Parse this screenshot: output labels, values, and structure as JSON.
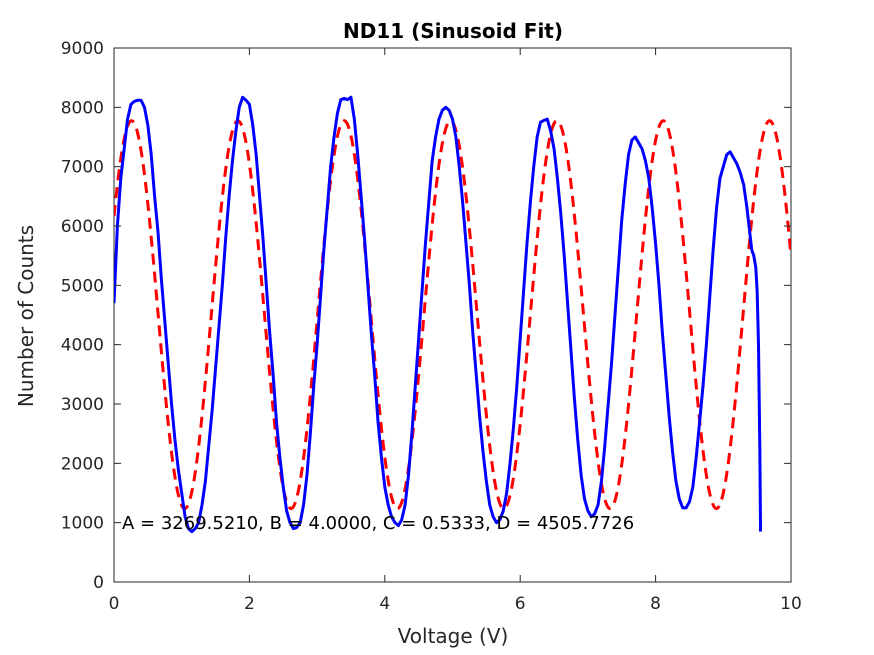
{
  "chart_data": {
    "type": "line",
    "title": "ND11 (Sinusoid Fit)",
    "xlabel": "Voltage (V)",
    "ylabel": "Number of Counts",
    "xlim": [
      0,
      10
    ],
    "ylim": [
      0,
      9000
    ],
    "xticks": [
      0,
      2,
      4,
      6,
      8,
      10
    ],
    "yticks": [
      0,
      1000,
      2000,
      3000,
      4000,
      5000,
      6000,
      7000,
      8000,
      9000
    ],
    "grid": false,
    "annotation": "A = 3269.5210, B = 4.0000, C = 0.5333, D = 4505.7726",
    "series": [
      {
        "style": "solid",
        "color": "#0000ff",
        "points": [
          [
            0.0,
            4700
          ],
          [
            0.05,
            6000
          ],
          [
            0.1,
            6800
          ],
          [
            0.15,
            7300
          ],
          [
            0.2,
            7800
          ],
          [
            0.25,
            8050
          ],
          [
            0.3,
            8100
          ],
          [
            0.35,
            8120
          ],
          [
            0.4,
            8120
          ],
          [
            0.45,
            8000
          ],
          [
            0.5,
            7700
          ],
          [
            0.55,
            7200
          ],
          [
            0.6,
            6500
          ],
          [
            0.65,
            5900
          ],
          [
            0.7,
            5100
          ],
          [
            0.75,
            4400
          ],
          [
            0.8,
            3700
          ],
          [
            0.85,
            3000
          ],
          [
            0.9,
            2400
          ],
          [
            0.95,
            1900
          ],
          [
            1.0,
            1500
          ],
          [
            1.05,
            1100
          ],
          [
            1.1,
            900
          ],
          [
            1.15,
            850
          ],
          [
            1.2,
            900
          ],
          [
            1.25,
            1000
          ],
          [
            1.3,
            1300
          ],
          [
            1.35,
            1700
          ],
          [
            1.4,
            2300
          ],
          [
            1.45,
            2900
          ],
          [
            1.5,
            3600
          ],
          [
            1.55,
            4300
          ],
          [
            1.6,
            5000
          ],
          [
            1.65,
            5800
          ],
          [
            1.7,
            6500
          ],
          [
            1.75,
            7100
          ],
          [
            1.8,
            7600
          ],
          [
            1.85,
            8000
          ],
          [
            1.9,
            8170
          ],
          [
            1.95,
            8120
          ],
          [
            2.0,
            8050
          ],
          [
            2.05,
            7700
          ],
          [
            2.1,
            7200
          ],
          [
            2.15,
            6500
          ],
          [
            2.2,
            5800
          ],
          [
            2.25,
            5000
          ],
          [
            2.3,
            4200
          ],
          [
            2.35,
            3500
          ],
          [
            2.4,
            2700
          ],
          [
            2.45,
            2100
          ],
          [
            2.5,
            1600
          ],
          [
            2.55,
            1200
          ],
          [
            2.6,
            1000
          ],
          [
            2.65,
            900
          ],
          [
            2.7,
            920
          ],
          [
            2.75,
            1000
          ],
          [
            2.8,
            1300
          ],
          [
            2.85,
            1800
          ],
          [
            2.9,
            2500
          ],
          [
            2.95,
            3300
          ],
          [
            3.0,
            4000
          ],
          [
            3.05,
            4800
          ],
          [
            3.1,
            5600
          ],
          [
            3.15,
            6300
          ],
          [
            3.2,
            7000
          ],
          [
            3.25,
            7500
          ],
          [
            3.3,
            7900
          ],
          [
            3.35,
            8130
          ],
          [
            3.4,
            8150
          ],
          [
            3.45,
            8130
          ],
          [
            3.5,
            8170
          ],
          [
            3.55,
            7800
          ],
          [
            3.6,
            7200
          ],
          [
            3.65,
            6500
          ],
          [
            3.7,
            5800
          ],
          [
            3.75,
            5000
          ],
          [
            3.8,
            4200
          ],
          [
            3.85,
            3500
          ],
          [
            3.9,
            2700
          ],
          [
            3.95,
            2100
          ],
          [
            4.0,
            1600
          ],
          [
            4.05,
            1300
          ],
          [
            4.1,
            1100
          ],
          [
            4.15,
            1000
          ],
          [
            4.2,
            950
          ],
          [
            4.25,
            1050
          ],
          [
            4.3,
            1300
          ],
          [
            4.35,
            1800
          ],
          [
            4.4,
            2500
          ],
          [
            4.45,
            3300
          ],
          [
            4.5,
            4100
          ],
          [
            4.55,
            4900
          ],
          [
            4.6,
            5700
          ],
          [
            4.65,
            6400
          ],
          [
            4.7,
            7100
          ],
          [
            4.75,
            7500
          ],
          [
            4.8,
            7800
          ],
          [
            4.85,
            7950
          ],
          [
            4.9,
            8000
          ],
          [
            4.95,
            7950
          ],
          [
            5.0,
            7800
          ],
          [
            5.05,
            7500
          ],
          [
            5.1,
            7000
          ],
          [
            5.15,
            6400
          ],
          [
            5.2,
            5700
          ],
          [
            5.25,
            5000
          ],
          [
            5.3,
            4200
          ],
          [
            5.35,
            3500
          ],
          [
            5.4,
            2800
          ],
          [
            5.45,
            2200
          ],
          [
            5.5,
            1700
          ],
          [
            5.55,
            1300
          ],
          [
            5.6,
            1100
          ],
          [
            5.65,
            1000
          ],
          [
            5.7,
            1050
          ],
          [
            5.75,
            1200
          ],
          [
            5.8,
            1500
          ],
          [
            5.85,
            2000
          ],
          [
            5.9,
            2600
          ],
          [
            5.95,
            3300
          ],
          [
            6.0,
            4100
          ],
          [
            6.05,
            4900
          ],
          [
            6.1,
            5700
          ],
          [
            6.15,
            6400
          ],
          [
            6.2,
            7000
          ],
          [
            6.25,
            7500
          ],
          [
            6.3,
            7750
          ],
          [
            6.35,
            7780
          ],
          [
            6.4,
            7800
          ],
          [
            6.45,
            7600
          ],
          [
            6.5,
            7300
          ],
          [
            6.55,
            6800
          ],
          [
            6.6,
            6200
          ],
          [
            6.65,
            5500
          ],
          [
            6.7,
            4700
          ],
          [
            6.75,
            3900
          ],
          [
            6.8,
            3100
          ],
          [
            6.85,
            2400
          ],
          [
            6.9,
            1800
          ],
          [
            6.95,
            1400
          ],
          [
            7.0,
            1200
          ],
          [
            7.05,
            1100
          ],
          [
            7.1,
            1150
          ],
          [
            7.15,
            1300
          ],
          [
            7.2,
            1700
          ],
          [
            7.25,
            2300
          ],
          [
            7.3,
            3000
          ],
          [
            7.35,
            3700
          ],
          [
            7.4,
            4500
          ],
          [
            7.45,
            5300
          ],
          [
            7.5,
            6100
          ],
          [
            7.55,
            6700
          ],
          [
            7.6,
            7200
          ],
          [
            7.65,
            7450
          ],
          [
            7.7,
            7500
          ],
          [
            7.75,
            7400
          ],
          [
            7.8,
            7300
          ],
          [
            7.85,
            7100
          ],
          [
            7.9,
            6800
          ],
          [
            7.95,
            6300
          ],
          [
            8.0,
            5700
          ],
          [
            8.05,
            5000
          ],
          [
            8.1,
            4200
          ],
          [
            8.15,
            3500
          ],
          [
            8.2,
            2800
          ],
          [
            8.25,
            2200
          ],
          [
            8.3,
            1700
          ],
          [
            8.35,
            1400
          ],
          [
            8.4,
            1250
          ],
          [
            8.45,
            1250
          ],
          [
            8.5,
            1350
          ],
          [
            8.55,
            1600
          ],
          [
            8.6,
            2100
          ],
          [
            8.65,
            2700
          ],
          [
            8.7,
            3300
          ],
          [
            8.75,
            4000
          ],
          [
            8.8,
            4800
          ],
          [
            8.85,
            5600
          ],
          [
            8.9,
            6300
          ],
          [
            8.95,
            6800
          ],
          [
            9.0,
            7000
          ],
          [
            9.05,
            7200
          ],
          [
            9.1,
            7250
          ],
          [
            9.15,
            7150
          ],
          [
            9.2,
            7050
          ],
          [
            9.25,
            6900
          ],
          [
            9.3,
            6700
          ],
          [
            9.35,
            6300
          ],
          [
            9.4,
            5800
          ],
          [
            9.42,
            5600
          ],
          [
            9.45,
            5500
          ],
          [
            9.48,
            5300
          ],
          [
            9.5,
            4900
          ],
          [
            9.52,
            4000
          ],
          [
            9.54,
            2200
          ],
          [
            9.55,
            850
          ]
        ]
      },
      {
        "style": "dashed",
        "color": "#ff0000",
        "fit": {
          "A": 3269.521,
          "B": 4.0,
          "C": 0.5333,
          "D": 4505.7726
        }
      }
    ]
  }
}
